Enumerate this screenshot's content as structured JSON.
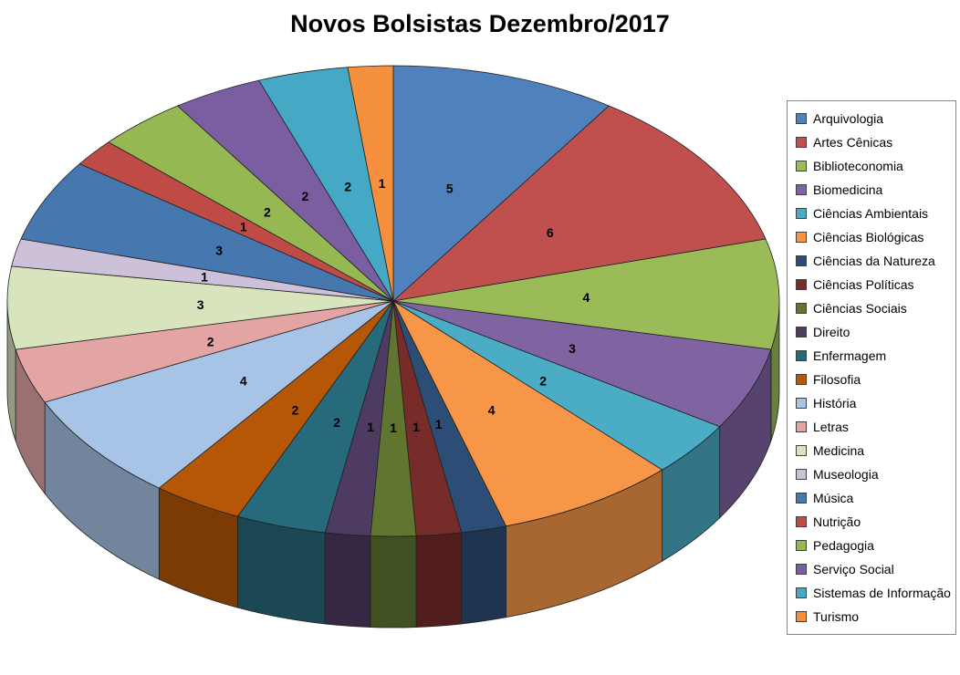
{
  "chart_data": {
    "type": "pie",
    "style": "3d-pie",
    "title": "Novos Bolsistas Dezembro/2017",
    "legend_position": "right",
    "direction": "clockwise",
    "start_angle_deg": 0,
    "data_labels": "value",
    "total": 53,
    "categories": [
      "Arquivologia",
      "Artes Cênicas",
      "Biblioteconomia",
      "Biomedicina",
      "Ciências Ambientais",
      "Ciências Biológicas",
      "Ciências da Natureza",
      "Ciências Políticas",
      "Ciências Sociais",
      "Direito",
      "Enfermagem",
      "Filosofia",
      "História",
      "Letras",
      "Medicina",
      "Museologia",
      "Música",
      "Nutrição",
      "Pedagogia",
      "Serviço Social",
      "Sistemas de Informação",
      "Turismo"
    ],
    "values": [
      5,
      6,
      4,
      3,
      2,
      4,
      1,
      1,
      1,
      1,
      2,
      2,
      4,
      2,
      3,
      1,
      3,
      1,
      2,
      2,
      2,
      1
    ],
    "colors": [
      "#4F81BD",
      "#C0504D",
      "#9BBB59",
      "#8064A2",
      "#4BACC6",
      "#F79646",
      "#2C4D75",
      "#772C2A",
      "#5F7530",
      "#4D3B62",
      "#276A7C",
      "#B65708",
      "#A7C3E5",
      "#E2A5A4",
      "#D7E4BD",
      "#CCC1D9",
      "#4677AE",
      "#BF4B47",
      "#95B852",
      "#7B5EA2",
      "#45A9C6",
      "#F5913E"
    ]
  }
}
